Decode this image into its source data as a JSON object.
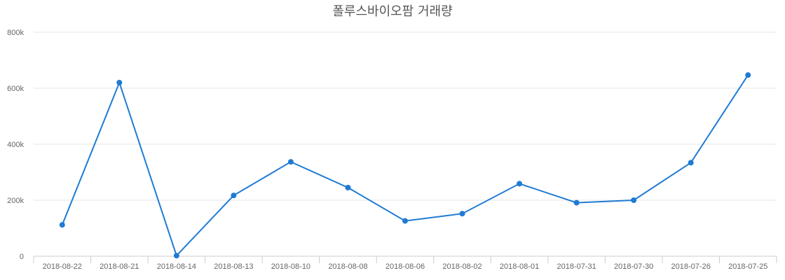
{
  "chart_data": {
    "type": "line",
    "title": "폴루스바이오팜 거래량",
    "xlabel": "",
    "ylabel": "",
    "categories": [
      "2018-08-22",
      "2018-08-21",
      "2018-08-14",
      "2018-08-13",
      "2018-08-10",
      "2018-08-08",
      "2018-08-06",
      "2018-08-02",
      "2018-08-01",
      "2018-07-31",
      "2018-07-30",
      "2018-07-26",
      "2018-07-25"
    ],
    "series": [
      {
        "values": [
          112000,
          620000,
          2000,
          217000,
          337000,
          245000,
          126000,
          152000,
          259000,
          191000,
          200000,
          334000,
          647000
        ]
      }
    ],
    "ylim": [
      0,
      800000
    ],
    "yticks": [
      0,
      200000,
      400000,
      600000,
      800000
    ],
    "ytick_labels": [
      "0",
      "200k",
      "400k",
      "600k",
      "800k"
    ],
    "grid": true,
    "legend": "none",
    "colors": {
      "series": "#1f7bd4"
    }
  }
}
